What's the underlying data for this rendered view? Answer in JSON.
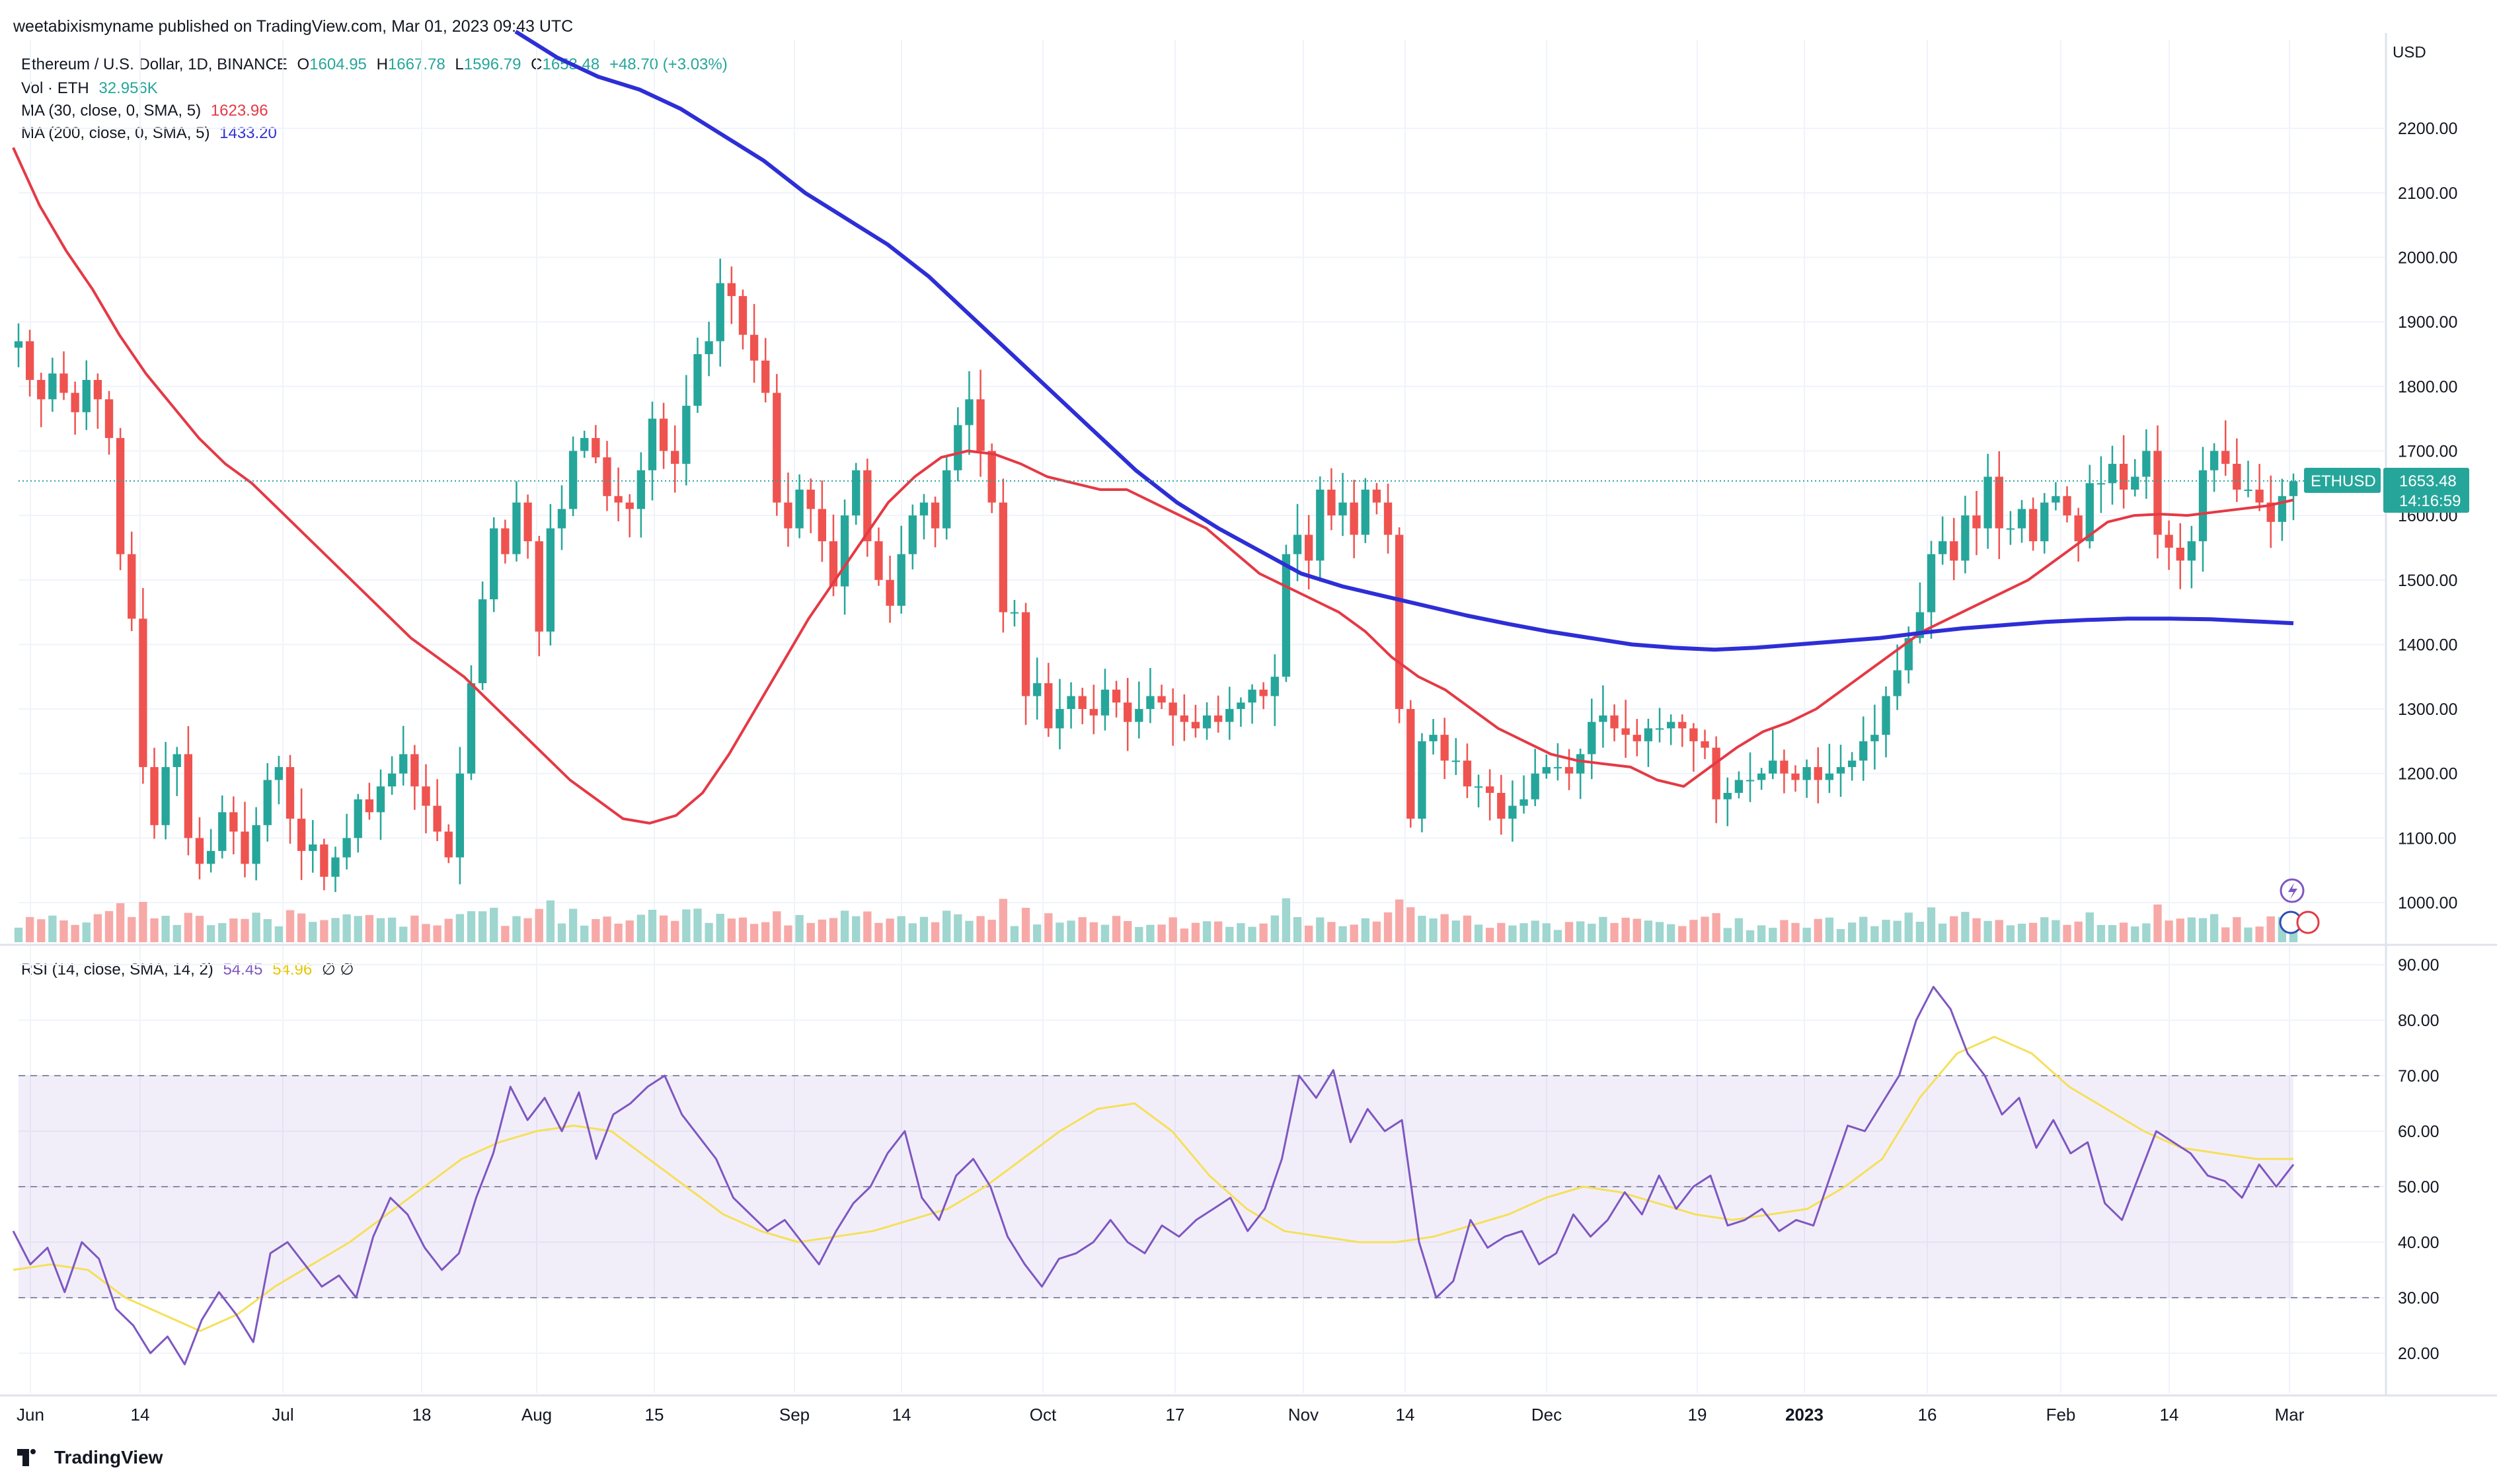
{
  "publisher": "weetabixismyname published on TradingView.com, Mar 01, 2023 09:43 UTC",
  "legend": {
    "symbol": "Ethereum / U.S. Dollar, 1D, BINANCE",
    "o_label": "O",
    "o": "1604.95",
    "h_label": "H",
    "h": "1667.78",
    "l_label": "L",
    "l": "1596.79",
    "c_label": "C",
    "c": "1653.48",
    "change": "+48.70 (+3.03%)",
    "vol_label": "Vol · ETH",
    "vol": "32.956K",
    "ma30_label": "MA (30, close, 0, SMA, 5)",
    "ma30": "1623.96",
    "ma200_label": "MA (200, close, 0, SMA, 5)",
    "ma200": "1433.20",
    "rsi_label": "RSI (14, close, SMA, 14, 2)",
    "rsi": "54.45",
    "rsi_sma": "54.96",
    "rsi_extra": "∅ ∅"
  },
  "currency": "USD",
  "price_tag": {
    "symbol": "ETHUSD",
    "price": "1653.48",
    "countdown": "14:16:59"
  },
  "brand": "TradingView",
  "colors": {
    "up": "#26a69a",
    "down": "#ef5350",
    "ma30": "#e53945",
    "ma200": "#2e2ed6",
    "rsi": "#7e57c2",
    "rsi_sma": "#f5e05a"
  },
  "chart_data": [
    {
      "type": "candlestick",
      "title": "Ethereum / U.S. Dollar, 1D, BINANCE",
      "x_ticks": [
        "Jun",
        "14",
        "Jul",
        "18",
        "Aug",
        "15",
        "Sep",
        "14",
        "Oct",
        "17",
        "Nov",
        "14",
        "Dec",
        "19",
        "2023",
        "16",
        "Feb",
        "14",
        "Mar"
      ],
      "y_ticks": [
        "2200.00",
        "2100.00",
        "2000.00",
        "1900.00",
        "1800.00",
        "1700.00",
        "1600.00",
        "1500.00",
        "1400.00",
        "1300.00",
        "1200.00",
        "1100.00",
        "1000.00"
      ],
      "ylim": [
        960,
        2330
      ],
      "close_series": [
        1870,
        1810,
        1780,
        1820,
        1790,
        1760,
        1810,
        1780,
        1720,
        1540,
        1440,
        1210,
        1120,
        1210,
        1230,
        1100,
        1060,
        1080,
        1140,
        1110,
        1060,
        1120,
        1190,
        1210,
        1130,
        1080,
        1090,
        1040,
        1070,
        1100,
        1160,
        1140,
        1180,
        1200,
        1230,
        1180,
        1150,
        1110,
        1070,
        1200,
        1340,
        1470,
        1580,
        1540,
        1620,
        1560,
        1420,
        1580,
        1610,
        1700,
        1720,
        1690,
        1630,
        1620,
        1610,
        1670,
        1750,
        1700,
        1680,
        1770,
        1850,
        1870,
        1960,
        1940,
        1880,
        1840,
        1790,
        1620,
        1580,
        1640,
        1610,
        1560,
        1490,
        1600,
        1670,
        1560,
        1500,
        1460,
        1540,
        1600,
        1620,
        1580,
        1670,
        1740,
        1780,
        1700,
        1620,
        1450,
        1450,
        1320,
        1340,
        1270,
        1300,
        1320,
        1300,
        1290,
        1330,
        1310,
        1280,
        1300,
        1320,
        1310,
        1290,
        1280,
        1270,
        1290,
        1280,
        1300,
        1310,
        1330,
        1320,
        1350,
        1540,
        1570,
        1530,
        1640,
        1600,
        1620,
        1570,
        1640,
        1620,
        1570,
        1300,
        1130,
        1250,
        1260,
        1220,
        1220,
        1180,
        1180,
        1170,
        1130,
        1150,
        1160,
        1200,
        1210,
        1210,
        1200,
        1230,
        1280,
        1290,
        1270,
        1260,
        1250,
        1270,
        1270,
        1280,
        1270,
        1250,
        1240,
        1160,
        1170,
        1190,
        1190,
        1200,
        1220,
        1200,
        1190,
        1210,
        1190,
        1200,
        1210,
        1220,
        1250,
        1260,
        1320,
        1360,
        1410,
        1450,
        1540,
        1560,
        1530,
        1600,
        1580,
        1660,
        1580,
        1580,
        1610,
        1560,
        1620,
        1630,
        1600,
        1560,
        1650,
        1650,
        1680,
        1640,
        1660,
        1700,
        1570,
        1550,
        1530,
        1560,
        1670,
        1700,
        1680,
        1640,
        1640,
        1620,
        1590,
        1630,
        1653
      ],
      "ma30_values": [
        2170,
        2080,
        2010,
        1950,
        1880,
        1820,
        1770,
        1720,
        1680,
        1650,
        1610,
        1570,
        1530,
        1490,
        1450,
        1410,
        1380,
        1350,
        1310,
        1270,
        1230,
        1190,
        1160,
        1130,
        1123,
        1135,
        1170,
        1230,
        1300,
        1370,
        1440,
        1500,
        1560,
        1620,
        1660,
        1690,
        1700,
        1695,
        1680,
        1660,
        1650,
        1640,
        1640,
        1620,
        1600,
        1580,
        1545,
        1510,
        1490,
        1470,
        1450,
        1420,
        1380,
        1350,
        1330,
        1300,
        1270,
        1250,
        1230,
        1220,
        1215,
        1210,
        1190,
        1180,
        1210,
        1240,
        1265,
        1280,
        1300,
        1330,
        1360,
        1390,
        1420,
        1440,
        1460,
        1480,
        1500,
        1530,
        1560,
        1590,
        1600,
        1602,
        1600,
        1605,
        1610,
        1615,
        1624
      ],
      "ma200_values": [
        2350,
        2310,
        2280,
        2260,
        2230,
        2190,
        2150,
        2100,
        2060,
        2020,
        1970,
        1910,
        1850,
        1790,
        1730,
        1670,
        1620,
        1580,
        1545,
        1510,
        1490,
        1475,
        1460,
        1445,
        1432,
        1420,
        1410,
        1400,
        1395,
        1392,
        1395,
        1400,
        1405,
        1410,
        1418,
        1425,
        1430,
        1435,
        1438,
        1440,
        1440,
        1439,
        1436,
        1433
      ]
    },
    {
      "type": "bar",
      "title": "Vol · ETH",
      "last_value": "32.956K"
    },
    {
      "type": "line",
      "title": "RSI (14, close, SMA, 14, 2)",
      "y_ticks": [
        "90.00",
        "80.00",
        "70.00",
        "60.00",
        "50.00",
        "40.00",
        "30.00",
        "20.00"
      ],
      "ylim": [
        13,
        93
      ],
      "bands": [
        30,
        50,
        70
      ],
      "rsi_values": [
        42,
        36,
        39,
        31,
        40,
        37,
        28,
        25,
        20,
        23,
        18,
        26,
        31,
        27,
        22,
        38,
        40,
        36,
        32,
        34,
        30,
        41,
        48,
        45,
        39,
        35,
        38,
        48,
        56,
        68,
        62,
        66,
        60,
        67,
        55,
        63,
        65,
        68,
        70,
        63,
        59,
        55,
        48,
        45,
        42,
        44,
        40,
        36,
        42,
        47,
        50,
        56,
        60,
        48,
        44,
        52,
        55,
        50,
        41,
        36,
        32,
        37,
        38,
        40,
        44,
        40,
        38,
        43,
        41,
        44,
        46,
        48,
        42,
        46,
        55,
        70,
        66,
        71,
        58,
        64,
        60,
        62,
        40,
        30,
        33,
        44,
        39,
        41,
        42,
        36,
        38,
        45,
        41,
        44,
        49,
        45,
        52,
        46,
        50,
        52,
        43,
        44,
        46,
        42,
        44,
        43,
        52,
        61,
        60,
        65,
        70,
        80,
        86,
        82,
        74,
        70,
        63,
        66,
        57,
        62,
        56,
        58,
        47,
        44,
        52,
        60,
        58,
        56,
        52,
        51,
        48,
        54,
        50,
        54
      ],
      "rsi_sma_values": [
        35,
        36,
        35,
        30,
        27,
        24,
        27,
        32,
        36,
        40,
        45,
        50,
        55,
        58,
        60,
        61,
        60,
        55,
        50,
        45,
        42,
        40,
        41,
        42,
        44,
        46,
        50,
        55,
        60,
        64,
        65,
        60,
        52,
        46,
        42,
        41,
        40,
        40,
        41,
        43,
        45,
        48,
        50,
        49,
        47,
        45,
        44,
        45,
        46,
        50,
        55,
        66,
        74,
        77,
        74,
        68,
        64,
        60,
        57,
        56,
        55,
        55
      ]
    }
  ]
}
